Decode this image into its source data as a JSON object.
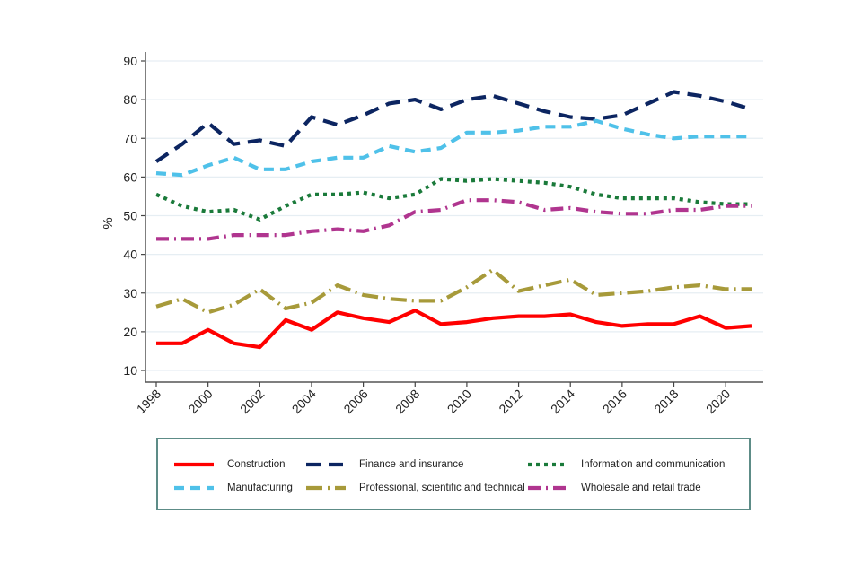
{
  "chart_data": {
    "type": "line",
    "title": "",
    "xlabel": "",
    "ylabel": "%",
    "x": [
      1998,
      1999,
      2000,
      2001,
      2002,
      2003,
      2004,
      2005,
      2006,
      2007,
      2008,
      2009,
      2010,
      2011,
      2012,
      2013,
      2014,
      2015,
      2016,
      2017,
      2018,
      2019,
      2020,
      2021
    ],
    "xlim": [
      1998,
      2021
    ],
    "ylim": [
      10,
      90
    ],
    "xticks": [
      1998,
      2000,
      2002,
      2004,
      2006,
      2008,
      2010,
      2012,
      2014,
      2016,
      2018,
      2020
    ],
    "yticks": [
      10,
      20,
      30,
      40,
      50,
      60,
      70,
      80,
      90
    ],
    "xtick_labels": [
      "1998",
      "2000",
      "2002",
      "2004",
      "2006",
      "2008",
      "2010",
      "2012",
      "2014",
      "2016",
      "2018",
      "2020"
    ],
    "ytick_labels": [
      "10",
      "20",
      "30",
      "40",
      "50",
      "60",
      "70",
      "80",
      "90"
    ],
    "grid": true,
    "legend_position": "bottom",
    "series": [
      {
        "name": "Construction",
        "color": "#ff0000",
        "style": "solid",
        "values": [
          17,
          17,
          20.5,
          17,
          16,
          23,
          20.5,
          25,
          23.5,
          22.5,
          25.5,
          22,
          22.5,
          23.5,
          24,
          24,
          24.5,
          22.5,
          21.5,
          22,
          22,
          24,
          21,
          21.5
        ]
      },
      {
        "name": "Finance and insurance",
        "color": "#0c2561",
        "style": "longdash",
        "values": [
          64,
          68.5,
          74,
          68.5,
          69.5,
          68,
          75.5,
          73.5,
          76,
          79,
          80,
          77.5,
          80,
          81,
          79,
          77,
          75.5,
          75,
          76,
          79,
          82,
          81,
          79.5,
          77.5
        ]
      },
      {
        "name": "Information and communication",
        "color": "#1a7a3a",
        "style": "dot",
        "values": [
          55.5,
          52.5,
          51,
          51.5,
          49,
          52.5,
          55.5,
          55.5,
          56,
          54.5,
          55.5,
          59.5,
          59,
          59.5,
          59,
          58.5,
          57.5,
          55.5,
          54.5,
          54.5,
          54.5,
          53.5,
          53,
          53
        ]
      },
      {
        "name": "Manufacturing",
        "color": "#4fc1e9",
        "style": "shortdash",
        "values": [
          61,
          60.5,
          63,
          65,
          62,
          62,
          64,
          65,
          65,
          68,
          66.5,
          67.5,
          71.5,
          71.5,
          72,
          73,
          73,
          74.5,
          72.5,
          71,
          70,
          70.5,
          70.5,
          70.5
        ]
      },
      {
        "name": "Professional, scientific and technical",
        "color": "#a79a3a",
        "style": "dashdot",
        "values": [
          26.5,
          28.5,
          25,
          27,
          31,
          26,
          27.5,
          32,
          29.5,
          28.5,
          28,
          28,
          31.5,
          36,
          30.5,
          32,
          33.5,
          29.5,
          30,
          30.5,
          31.5,
          32,
          31,
          31
        ]
      },
      {
        "name": "Wholesale and retail trade",
        "color": "#b0358f",
        "style": "dashdot2",
        "values": [
          44,
          44,
          44,
          45,
          45,
          45,
          46,
          46.5,
          46,
          47.5,
          51,
          51.5,
          54,
          54,
          53.5,
          51.5,
          52,
          51,
          50.5,
          50.5,
          51.5,
          51.5,
          52.5,
          52.5
        ]
      }
    ]
  },
  "legend": {
    "items": [
      {
        "label": "Construction"
      },
      {
        "label": "Finance and insurance"
      },
      {
        "label": "Information and communication"
      },
      {
        "label": "Manufacturing"
      },
      {
        "label": "Professional, scientific and technical"
      },
      {
        "label": "Wholesale and retail trade"
      }
    ]
  }
}
